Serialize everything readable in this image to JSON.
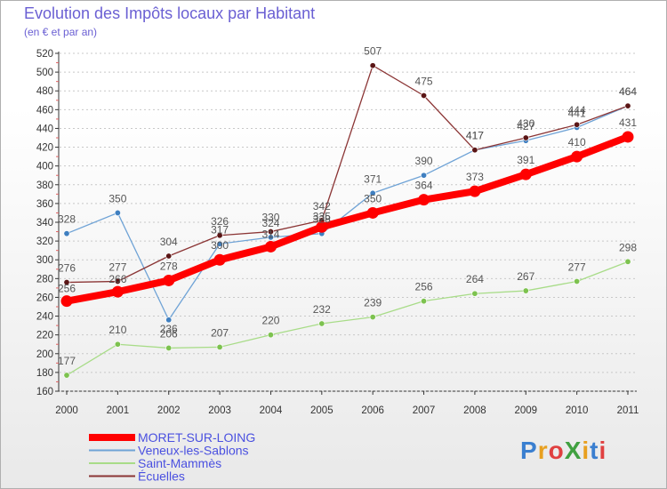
{
  "header": {
    "title": "Evolution des Impôts locaux par Habitant",
    "subtitle": "(en € et par an)"
  },
  "logo": {
    "text": "ProXiti",
    "colors": [
      "#3a7fd0",
      "#e8a020",
      "#e04040",
      "#40a040",
      "#e8a020",
      "#3a7fd0",
      "#e04040"
    ]
  },
  "chart_data": {
    "type": "line",
    "title": "Evolution des Impôts locaux par Habitant",
    "subtitle": "(en € et par an)",
    "xlabel": "",
    "ylabel": "",
    "categories": [
      "2000",
      "2001",
      "2002",
      "2003",
      "2004",
      "2005",
      "2006",
      "2007",
      "2008",
      "2009",
      "2010",
      "2011"
    ],
    "ylim": [
      160,
      520
    ],
    "yticks": [
      160,
      180,
      200,
      220,
      240,
      260,
      280,
      300,
      320,
      340,
      360,
      380,
      400,
      420,
      440,
      460,
      480,
      500,
      520
    ],
    "grid": "horizontal dashed",
    "legend_position": "bottom-left",
    "series": [
      {
        "name": "MORET-SUR-LOING",
        "color": "#ff0000",
        "values": [
          256,
          266,
          278,
          300,
          314,
          335,
          350,
          364,
          373,
          391,
          410,
          431
        ],
        "labels": [
          "256",
          "266",
          "278",
          "300",
          "314",
          "335",
          "350",
          "364",
          "373",
          "391",
          "410",
          "431"
        ]
      },
      {
        "name": "Veneux-les-Sablons",
        "color": "#6fa3d6",
        "marker": "#3f7fc0",
        "values": [
          328,
          350,
          236,
          317,
          324,
          328,
          371,
          390,
          417,
          427,
          441,
          464
        ],
        "labels": [
          "328",
          "350",
          "236",
          "317",
          "324",
          "328",
          "371",
          "390",
          "417",
          "427",
          "441",
          "464"
        ]
      },
      {
        "name": "Saint-Mammès",
        "color": "#a8dc88",
        "marker": "#7dc24f",
        "values": [
          177,
          210,
          206,
          207,
          220,
          232,
          239,
          256,
          264,
          267,
          277,
          298
        ],
        "labels": [
          "177",
          "210",
          "206",
          "207",
          "220",
          "232",
          "239",
          "256",
          "264",
          "267",
          "277",
          "298"
        ]
      },
      {
        "name": "Écuelles",
        "color": "#8b3535",
        "marker": "#5a1515",
        "values": [
          276,
          277,
          304,
          326,
          330,
          342,
          507,
          475,
          417,
          430,
          444,
          464
        ],
        "labels": [
          "276",
          "277",
          "304",
          "326",
          "330",
          "342",
          "507",
          "475",
          "417",
          "430",
          "444",
          "464"
        ]
      }
    ]
  }
}
